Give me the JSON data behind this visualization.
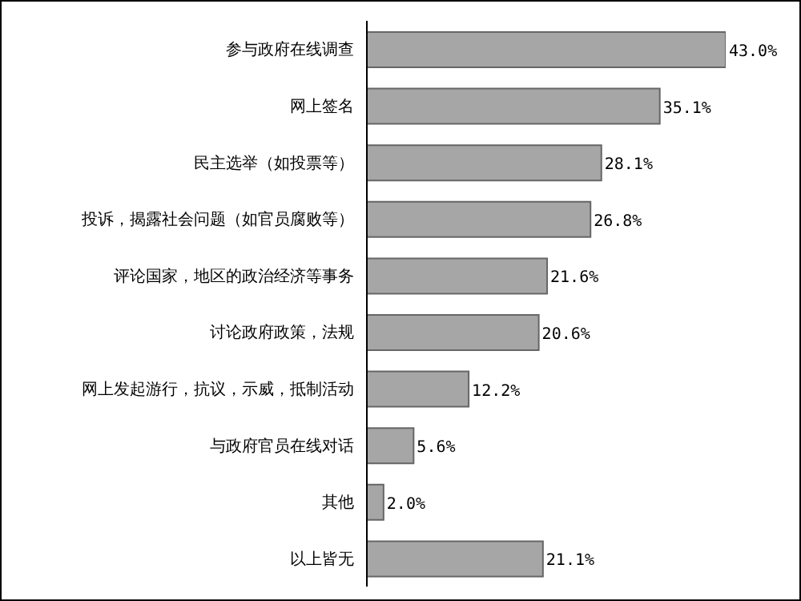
{
  "chart_data": {
    "type": "bar",
    "orientation": "horizontal",
    "categories": [
      "参与政府在线调查",
      "网上签名",
      "民主选举（如投票等）",
      "投诉，揭露社会问题（如官员腐败等）",
      "评论国家，地区的政治经济等事务",
      "讨论政府政策，法规",
      "网上发起游行，抗议，示威，抵制活动",
      "与政府官员在线对话",
      "其他",
      "以上皆无"
    ],
    "values": [
      43.0,
      35.1,
      28.1,
      26.8,
      21.6,
      20.6,
      12.2,
      5.6,
      2.0,
      21.1
    ],
    "value_labels": [
      "43.0%",
      "35.1%",
      "28.1%",
      "26.8%",
      "21.6%",
      "20.6%",
      "12.2%",
      "5.6%",
      "2.0%",
      "21.1%"
    ],
    "color": "#a6a6a6",
    "grid": false,
    "legend": false
  }
}
